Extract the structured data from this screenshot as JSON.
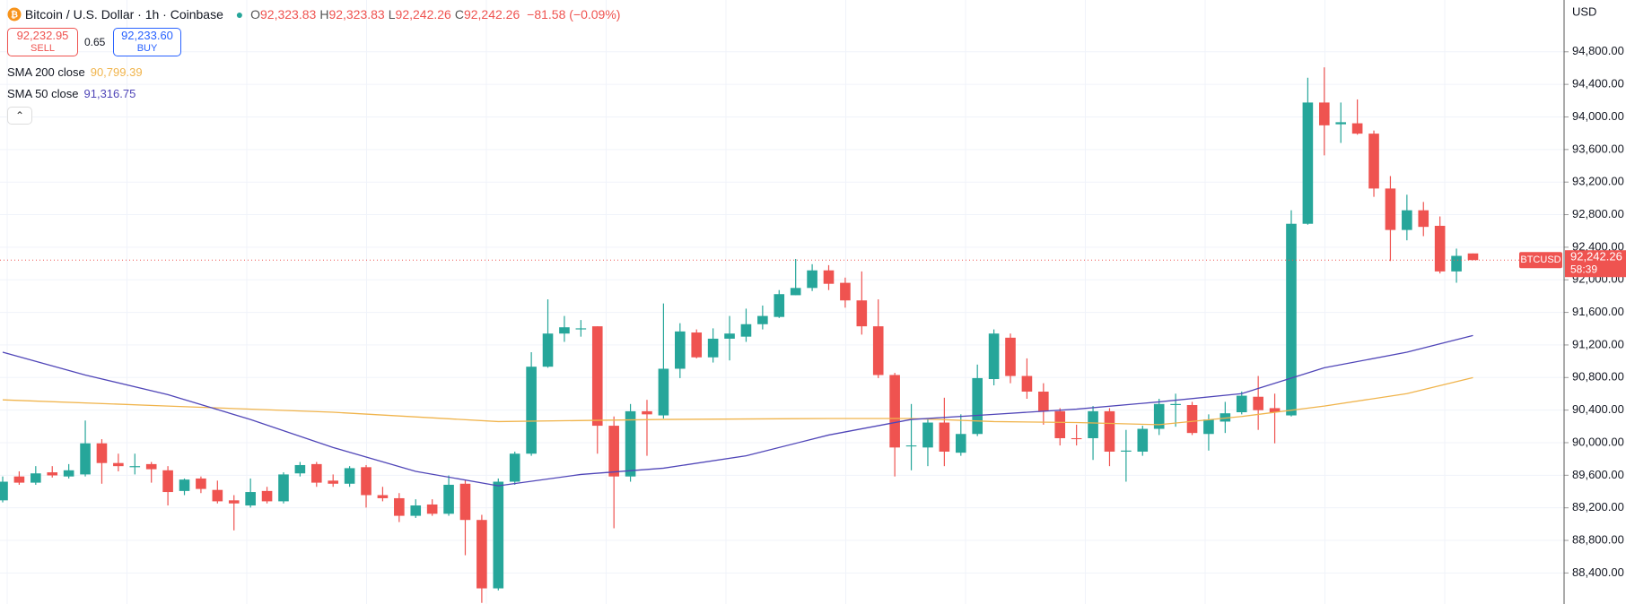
{
  "header": {
    "title": "Bitcoin / U.S. Dollar · 1h · Coinbase",
    "ohlc": [
      {
        "key": "O",
        "value": "92,323.83"
      },
      {
        "key": "H",
        "value": "92,323.83"
      },
      {
        "key": "L",
        "value": "92,242.26"
      },
      {
        "key": "C",
        "value": "92,242.26"
      }
    ],
    "change": "−81.58 (−0.09%)"
  },
  "trade": {
    "sell_price": "92,232.95",
    "sell": "SELL",
    "spread": "0.65",
    "buy_price": "92,233.60",
    "buy": "BUY"
  },
  "chart_data": {
    "type": "candlestick",
    "up_color": "#26a69a",
    "down_color": "#ef5350",
    "grid": true,
    "currency": "USD",
    "open": [
      89292,
      89585,
      89509,
      89636,
      89585,
      89610,
      89992,
      89750,
      89699,
      89737,
      89661,
      89407,
      89560,
      89420,
      89292,
      89229,
      89407,
      89280,
      89623,
      89737,
      89534,
      89496,
      89699,
      89356,
      89318,
      89102,
      89241,
      89127,
      89496,
      89051,
      88211,
      89521,
      89865,
      90933,
      91340,
      91391,
      91429,
      90208,
      89585,
      90386,
      90335,
      90908,
      91353,
      91048,
      91277,
      91302,
      91455,
      91544,
      91811,
      91900,
      92116,
      91963,
      91747,
      91429,
      90831,
      89954,
      89941,
      90247,
      89877,
      90107,
      90781,
      91289,
      90819,
      90627,
      90386,
      90055,
      90055,
      90386,
      89890,
      89890,
      90170,
      90462,
      90462,
      90107,
      90259,
      90374,
      90564,
      90424,
      90335,
      92688,
      94177,
      93910,
      93922,
      93795,
      93121,
      92612,
      92854,
      92663,
      92103,
      92323.83
    ],
    "high": [
      89585,
      89648,
      89712,
      89712,
      89737,
      90272,
      90043,
      89865,
      89865,
      89763,
      89712,
      89560,
      89585,
      89534,
      89356,
      89560,
      89458,
      89636,
      89763,
      89763,
      89610,
      89712,
      89725,
      89458,
      89381,
      89305,
      89305,
      89598,
      89547,
      89114,
      89560,
      89890,
      91111,
      91760,
      91556,
      91506,
      91429,
      90322,
      90475,
      90526,
      91709,
      91467,
      91391,
      91404,
      91556,
      91646,
      91684,
      91874,
      92256,
      92192,
      92180,
      92027,
      92103,
      91760,
      90857,
      90475,
      90285,
      90552,
      90348,
      90959,
      91391,
      91340,
      91035,
      90730,
      90424,
      90221,
      90450,
      90424,
      90157,
      90208,
      90539,
      90602,
      90501,
      90348,
      90501,
      90628,
      90819,
      90602,
      92854,
      94482,
      94609,
      94177,
      94215,
      93833,
      93274,
      93045,
      92956,
      92778,
      92383,
      92323.83
    ],
    "low": [
      89267,
      89483,
      89483,
      89572,
      89560,
      89585,
      89496,
      89648,
      89610,
      89509,
      89229,
      89356,
      89381,
      89254,
      88923,
      89203,
      89254,
      89254,
      89585,
      89458,
      89458,
      89458,
      89203,
      89280,
      89025,
      89076,
      89102,
      89102,
      88618,
      88033,
      88186,
      89483,
      89839,
      90920,
      91238,
      91302,
      89865,
      88949,
      89521,
      89839,
      90297,
      90793,
      91035,
      90984,
      91010,
      91238,
      91391,
      91531,
      91811,
      91862,
      91874,
      91658,
      91327,
      90793,
      89585,
      89661,
      89712,
      89712,
      89839,
      90081,
      90704,
      90730,
      90539,
      90221,
      89966,
      89966,
      89788,
      89712,
      89521,
      89839,
      90094,
      90196,
      90094,
      89903,
      90119,
      90348,
      90157,
      89992,
      90322,
      92676,
      93528,
      93681,
      93782,
      93019,
      92231,
      92485,
      92536,
      92078,
      91964,
      92242.26
    ],
    "close": [
      89521,
      89509,
      89623,
      89598,
      89661,
      89992,
      89750,
      89712,
      89712,
      89674,
      89394,
      89547,
      89432,
      89280,
      89254,
      89394,
      89280,
      89610,
      89725,
      89509,
      89496,
      89687,
      89356,
      89318,
      89102,
      89229,
      89127,
      89483,
      89051,
      88211,
      89521,
      89865,
      90933,
      91340,
      91417,
      91404,
      90208,
      89585,
      90386,
      90348,
      90908,
      91366,
      91048,
      91277,
      91340,
      91455,
      91556,
      91824,
      91900,
      92116,
      91951,
      91747,
      91429,
      90831,
      89941,
      89966,
      90247,
      89890,
      90107,
      90793,
      91340,
      90819,
      90627,
      90386,
      90055,
      90043,
      90386,
      89890,
      89903,
      90170,
      90475,
      90475,
      90119,
      90285,
      90361,
      90577,
      90399,
      90374,
      92688,
      94177,
      93897,
      93935,
      93795,
      93121,
      92612,
      92854,
      92650,
      92103,
      92294,
      92242.26
    ],
    "indicators": [
      {
        "name": "SMA 200 close",
        "color": "#f0b44c",
        "value_label": "90,799.39",
        "x": [
          0,
          10,
          20,
          30,
          40,
          50,
          55,
          60,
          65,
          70,
          75,
          80,
          85,
          89
        ],
        "values": [
          90526,
          90450,
          90374,
          90259,
          90285,
          90297,
          90297,
          90259,
          90247,
          90221,
          90322,
          90450,
          90602,
          90799.39
        ]
      },
      {
        "name": "SMA 50 close",
        "color": "#5046b8",
        "value_label": "91,316.75",
        "x": [
          0,
          5,
          10,
          15,
          20,
          25,
          30,
          35,
          40,
          45,
          50,
          55,
          60,
          65,
          70,
          75,
          80,
          85,
          89
        ],
        "values": [
          91111,
          90831,
          90590,
          90285,
          89941,
          89648,
          89470,
          89610,
          89687,
          89839,
          90094,
          90285,
          90348,
          90412,
          90501,
          90602,
          90920,
          91111,
          91316.75
        ]
      }
    ],
    "last_price": {
      "symbol": "BTCUSD",
      "label": "92,242.26",
      "countdown": "58:39"
    },
    "ylim": [
      88019,
      95436
    ],
    "yticks": [
      {
        "value": 88400,
        "label": "88,400.00"
      },
      {
        "value": 88800,
        "label": "88,800.00"
      },
      {
        "value": 89200,
        "label": "89,200.00"
      },
      {
        "value": 89600,
        "label": "89,600.00"
      },
      {
        "value": 90000,
        "label": "90,000.00"
      },
      {
        "value": 90400,
        "label": "90,400.00"
      },
      {
        "value": 90800,
        "label": "90,800.00"
      },
      {
        "value": 91200,
        "label": "91,200.00"
      },
      {
        "value": 91600,
        "label": "91,600.00"
      },
      {
        "value": 92000,
        "label": "92,000.00"
      },
      {
        "value": 92400,
        "label": "92,400.00"
      },
      {
        "value": 92800,
        "label": "92,800.00"
      },
      {
        "value": 93200,
        "label": "93,200.00"
      },
      {
        "value": 93600,
        "label": "93,600.00"
      },
      {
        "value": 94000,
        "label": "94,000.00"
      },
      {
        "value": 94400,
        "label": "94,400.00"
      },
      {
        "value": 94800,
        "label": "94,800.00"
      }
    ]
  }
}
